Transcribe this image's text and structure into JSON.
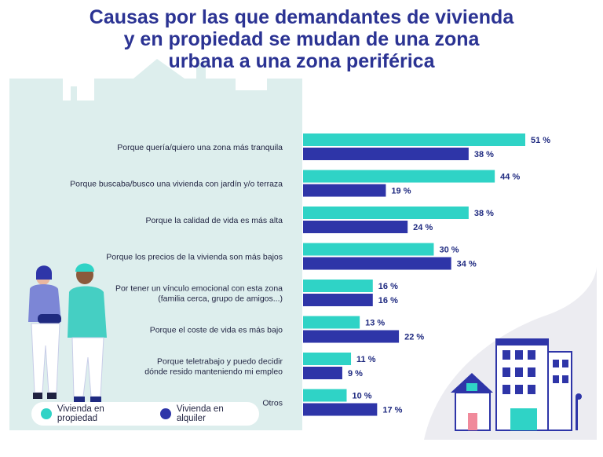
{
  "title_lines": [
    "Causas por las que demandantes de vivienda",
    "y en propiedad se mudan de una zona",
    "urbana a una zona periférica"
  ],
  "colors": {
    "propiedad": "#2fd3c6",
    "alquiler": "#2e35a8",
    "title": "#2b3393",
    "panel": "#ddeeed",
    "blob": "#ececf1"
  },
  "chart_data": {
    "type": "bar",
    "orientation": "horizontal",
    "categories": [
      [
        "Porque quería/quiero una zona más tranquila"
      ],
      [
        "Porque buscaba/busco una vivienda con jardín y/o terraza"
      ],
      [
        "Porque la calidad de vida es más alta"
      ],
      [
        "Porque los precios de la vivienda son más bajos"
      ],
      [
        "Por tener un vínculo emocional con esta zona",
        "(familia cerca, grupo de amigos...)"
      ],
      [
        "Porque el coste de vida es más bajo"
      ],
      [
        "Porque teletrabajo y puedo decidir",
        "dónde resido manteniendo mi empleo"
      ],
      [
        "Otros"
      ]
    ],
    "series": [
      {
        "name": "Vivienda en propiedad",
        "values": [
          51,
          44,
          38,
          30,
          16,
          13,
          11,
          10
        ]
      },
      {
        "name": "Vivienda en alquiler",
        "values": [
          38,
          19,
          24,
          34,
          16,
          22,
          9,
          17
        ]
      }
    ],
    "value_suffix": " %",
    "xlim": [
      0,
      51
    ],
    "legend_position": "bottom-left"
  }
}
